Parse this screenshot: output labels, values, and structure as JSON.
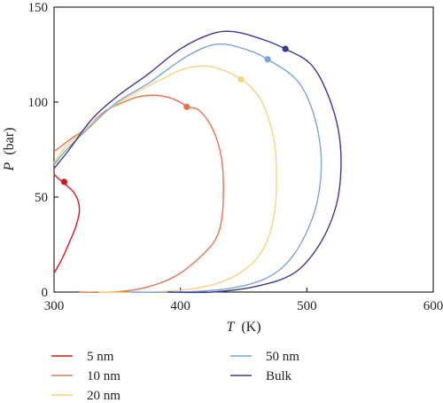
{
  "chart_data": {
    "type": "line",
    "xlabel_var": "T",
    "xlabel_unit": "(K)",
    "ylabel_var": "P",
    "ylabel_unit": "(bar)",
    "xlim": [
      300,
      600
    ],
    "ylim": [
      0,
      150
    ],
    "xticks": [
      300,
      400,
      500,
      600
    ],
    "yticks": [
      0,
      50,
      100,
      150
    ],
    "grid": false,
    "legend_position": "below",
    "series": [
      {
        "name": "5 nm",
        "color": "#d7191c",
        "points": [
          [
            300,
            10
          ],
          [
            306,
            17
          ],
          [
            312,
            26
          ],
          [
            317,
            34
          ],
          [
            320,
            42
          ],
          [
            319,
            48
          ],
          [
            315,
            53
          ],
          [
            310,
            56
          ],
          [
            307,
            58
          ],
          [
            303,
            60
          ],
          [
            300,
            62
          ]
        ],
        "critical": [
          308,
          58
        ]
      },
      {
        "name": "10 nm",
        "color": "#e9714c",
        "points": [
          [
            320,
            0
          ],
          [
            345,
            0
          ],
          [
            370,
            2
          ],
          [
            395,
            8
          ],
          [
            415,
            18
          ],
          [
            428,
            28
          ],
          [
            433,
            40
          ],
          [
            434,
            55
          ],
          [
            433,
            68
          ],
          [
            429,
            80
          ],
          [
            422,
            90
          ],
          [
            414,
            96
          ],
          [
            406,
            97.5
          ],
          [
            395,
            101.5
          ],
          [
            382,
            103.5
          ],
          [
            368,
            103
          ],
          [
            355,
            100
          ],
          [
            340,
            95
          ],
          [
            325,
            86
          ],
          [
            312,
            80
          ],
          [
            300,
            74
          ]
        ],
        "critical": [
          405,
          97.5
        ]
      },
      {
        "name": "20 nm",
        "color": "#f6d47d",
        "points": [
          [
            335,
            0
          ],
          [
            380,
            0
          ],
          [
            420,
            3
          ],
          [
            447,
            10
          ],
          [
            465,
            22
          ],
          [
            474,
            40
          ],
          [
            476,
            60
          ],
          [
            474,
            80
          ],
          [
            466,
            98
          ],
          [
            457,
            107
          ],
          [
            448,
            112
          ],
          [
            435,
            116.5
          ],
          [
            420,
            119
          ],
          [
            403,
            117.5
          ],
          [
            385,
            112
          ],
          [
            365,
            105
          ],
          [
            345,
            97
          ],
          [
            325,
            86
          ],
          [
            310,
            77
          ],
          [
            300,
            68
          ]
        ],
        "critical": [
          448,
          112
        ]
      },
      {
        "name": "50 nm",
        "color": "#7ba3dc",
        "points": [
          [
            360,
            0
          ],
          [
            400,
            0
          ],
          [
            440,
            2
          ],
          [
            470,
            8
          ],
          [
            490,
            20
          ],
          [
            505,
            40
          ],
          [
            511,
            60
          ],
          [
            510,
            80
          ],
          [
            502,
            100
          ],
          [
            490,
            113
          ],
          [
            469,
            122.5
          ],
          [
            455,
            127
          ],
          [
            435,
            130.5
          ],
          [
            420,
            129
          ],
          [
            400,
            122
          ],
          [
            375,
            110
          ],
          [
            350,
            100
          ],
          [
            330,
            88
          ],
          [
            310,
            75
          ],
          [
            300,
            67
          ]
        ],
        "critical": [
          469,
          122.5
        ]
      },
      {
        "name": "Bulk",
        "color": "#3a3a93",
        "points": [
          [
            390,
            0
          ],
          [
            425,
            0
          ],
          [
            460,
            3
          ],
          [
            490,
            10
          ],
          [
            510,
            25
          ],
          [
            523,
            45
          ],
          [
            527,
            65
          ],
          [
            525,
            85
          ],
          [
            516,
            105
          ],
          [
            503,
            120
          ],
          [
            483,
            128
          ],
          [
            465,
            133
          ],
          [
            443,
            137
          ],
          [
            425,
            136
          ],
          [
            400,
            128
          ],
          [
            375,
            115
          ],
          [
            350,
            103
          ],
          [
            330,
            91
          ],
          [
            312,
            75
          ],
          [
            300,
            65
          ]
        ],
        "critical": [
          483,
          128
        ]
      }
    ]
  }
}
